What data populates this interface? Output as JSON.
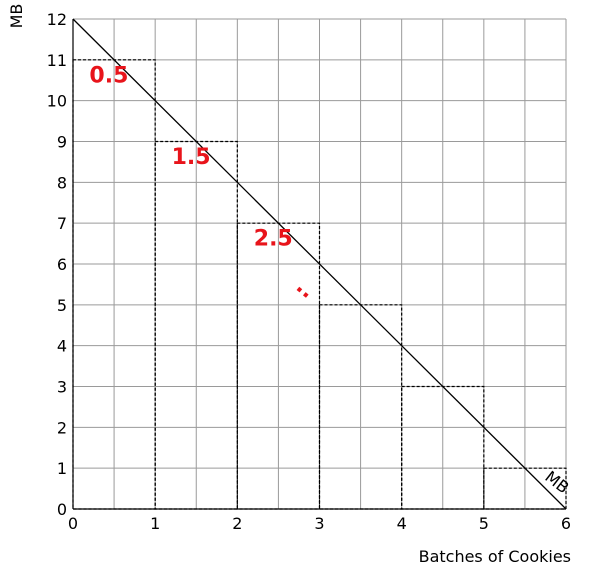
{
  "chart_data": {
    "type": "line",
    "xlabel": "Batches of Cookies",
    "ylabel": "MB",
    "xlim": [
      0,
      6
    ],
    "ylim": [
      0,
      12
    ],
    "x_ticks": [
      "0",
      "1",
      "2",
      "3",
      "4",
      "5",
      "6"
    ],
    "y_ticks": [
      "0",
      "1",
      "2",
      "3",
      "4",
      "5",
      "6",
      "7",
      "8",
      "9",
      "10",
      "11",
      "12"
    ],
    "grid": true,
    "series": [
      {
        "name": "MB",
        "x": [
          0,
          6
        ],
        "y": [
          12,
          0
        ],
        "line_label": "MB"
      }
    ],
    "step_bars": {
      "style": "dashed",
      "bars": [
        {
          "x0": 0,
          "x1": 1,
          "y": 11
        },
        {
          "x0": 1,
          "x1": 2,
          "y": 9
        },
        {
          "x0": 2,
          "x1": 3,
          "y": 7
        },
        {
          "x0": 3,
          "x1": 4,
          "y": 5
        },
        {
          "x0": 4,
          "x1": 5,
          "y": 3
        },
        {
          "x0": 5,
          "x1": 6,
          "y": 1
        }
      ]
    },
    "annotations": [
      {
        "text": "0.5",
        "x": 0.2,
        "y": 10.45,
        "color": "#e8141b"
      },
      {
        "text": "1.5",
        "x": 1.2,
        "y": 8.45,
        "color": "#e8141b"
      },
      {
        "text": "2.5",
        "x": 2.2,
        "y": 6.45,
        "color": "#e8141b"
      },
      {
        "text": "..",
        "x": 2.7,
        "y": 5.4,
        "color": "#e8141b"
      }
    ]
  }
}
